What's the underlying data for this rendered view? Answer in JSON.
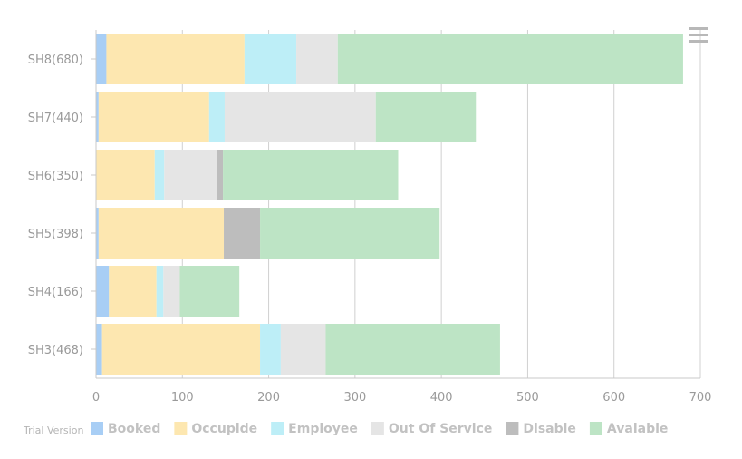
{
  "chart_data": {
    "type": "bar",
    "orientation": "horizontal",
    "stacked": true,
    "categories": [
      "SH8(680)",
      "SH7(440)",
      "SH6(350)",
      "SH5(398)",
      "SH4(166)",
      "SH3(468)"
    ],
    "series": [
      {
        "name": "Booked",
        "color": "#a8cef5",
        "values": [
          12,
          3,
          0,
          3,
          15,
          7
        ]
      },
      {
        "name": "Occupide",
        "color": "#fde7b0",
        "values": [
          160,
          128,
          68,
          145,
          55,
          183
        ]
      },
      {
        "name": "Employee",
        "color": "#bdeef7",
        "values": [
          60,
          18,
          11,
          0,
          8,
          24
        ]
      },
      {
        "name": "Out Of Service",
        "color": "#e5e5e5",
        "values": [
          48,
          175,
          61,
          0,
          19,
          52
        ]
      },
      {
        "name": "Disable",
        "color": "#bdbdbd",
        "values": [
          0,
          0,
          7,
          42,
          0,
          0
        ]
      },
      {
        "name": "Avaiable",
        "color": "#bde4c5",
        "values": [
          400,
          116,
          203,
          208,
          69,
          202
        ]
      }
    ],
    "xlim": [
      0,
      700
    ],
    "xticks": [
      "0",
      "100",
      "200",
      "300",
      "400",
      "500",
      "600",
      "700"
    ],
    "grid": true,
    "legend_position": "bottom-left",
    "title": "",
    "xlabel": "",
    "ylabel": ""
  },
  "watermark": "Trial Version",
  "menu_icon": "hamburger-menu-icon"
}
